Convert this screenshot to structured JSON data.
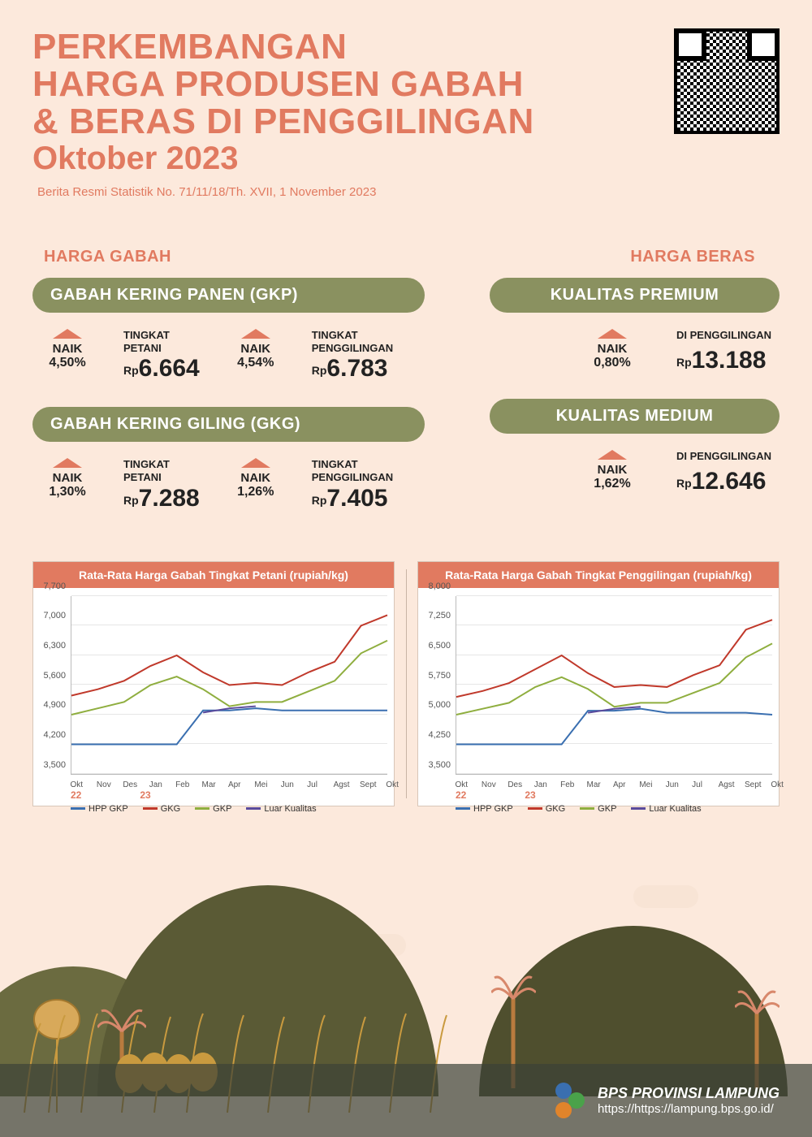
{
  "colors": {
    "background": "#fce9dc",
    "coral": "#e17a60",
    "olive": "#8a9160",
    "text": "#222222",
    "hill_dark": "#4f4f2e",
    "hill_mid": "#5a5a35",
    "hill_light": "#6b6b40",
    "wheat": "#c99a3f"
  },
  "typography": {
    "title_fontsize": 44,
    "title_weight": 800,
    "subtitle_fontsize": 15
  },
  "header": {
    "title_line_1": "PERKEMBANGAN",
    "title_line_2": "HARGA PRODUSEN GABAH",
    "title_line_3": "& BERAS DI PENGGILINGAN",
    "month_line": "Oktober 2023",
    "subtitle": "Berita Resmi Statistik No. 71/11/18/Th. XVII, 1 November 2023"
  },
  "left_section_title": "HARGA GABAH",
  "right_section_title": "HARGA BERAS",
  "gkp": {
    "pill": "GABAH KERING PANEN (GKP)",
    "a": {
      "naik": "NAIK",
      "pct": "4,50%",
      "label_l1": "TINGKAT",
      "label_l2": "PETANI",
      "rp": "Rp",
      "val": "6.664"
    },
    "b": {
      "naik": "NAIK",
      "pct": "4,54%",
      "label_l1": "TINGKAT",
      "label_l2": "PENGGILINGAN",
      "rp": "Rp",
      "val": "6.783"
    }
  },
  "gkg": {
    "pill": "GABAH KERING GILING (GKG)",
    "a": {
      "naik": "NAIK",
      "pct": "1,30%",
      "label_l1": "TINGKAT",
      "label_l2": "PETANI",
      "rp": "Rp",
      "val": "7.288"
    },
    "b": {
      "naik": "NAIK",
      "pct": "1,26%",
      "label_l1": "TINGKAT",
      "label_l2": "PENGGILINGAN",
      "rp": "Rp",
      "val": "7.405"
    }
  },
  "premium": {
    "pill": "KUALITAS PREMIUM",
    "a": {
      "naik": "NAIK",
      "pct": "0,80%",
      "label_l1": "DI PENGGILINGAN",
      "rp": "Rp",
      "val": "13.188"
    }
  },
  "medium": {
    "pill": "KUALITAS MEDIUM",
    "a": {
      "naik": "NAIK",
      "pct": "1,62%",
      "label_l1": "DI PENGGILINGAN",
      "rp": "Rp",
      "val": "12.646"
    }
  },
  "chart_left": {
    "title": "Rata-Rata Harga Gabah Tingkat Petani (rupiah/kg)",
    "type": "line",
    "ylim": [
      3500,
      7700
    ],
    "ytick_step": 700,
    "yticks": [
      3500,
      4200,
      4900,
      5600,
      6300,
      7000,
      7700
    ],
    "xlabels": [
      "Okt",
      "Nov",
      "Des",
      "Jan",
      "Feb",
      "Mar",
      "Apr",
      "Mei",
      "Jun",
      "Jul",
      "Agst",
      "Sept",
      "Okt"
    ],
    "year_tags": [
      "22",
      "23"
    ],
    "grid_color": "#e6e6e6",
    "background_color": "#ffffff",
    "label_fontsize": 11,
    "series": {
      "hpp_gkp": {
        "color": "#3a6fb0",
        "width": 2,
        "values": [
          4200,
          4200,
          4200,
          4200,
          4200,
          5000,
          5000,
          5050,
          5000,
          5000,
          5000,
          5000,
          5000
        ]
      },
      "gkg": {
        "color": "#c0392b",
        "width": 2,
        "values": [
          5350,
          5500,
          5700,
          6050,
          6300,
          5900,
          5600,
          5650,
          5600,
          5900,
          6150,
          7000,
          7250
        ]
      },
      "gkp": {
        "color": "#8fae3f",
        "width": 2,
        "values": [
          4900,
          5050,
          5200,
          5600,
          5800,
          5500,
          5100,
          5200,
          5200,
          5450,
          5700,
          6350,
          6650
        ]
      },
      "luar_kualitas": {
        "color": "#5a4a9c",
        "width": 2,
        "values": [
          null,
          null,
          null,
          null,
          null,
          4950,
          5050,
          5100,
          null,
          null,
          null,
          null,
          null
        ]
      }
    },
    "legend": [
      {
        "key": "hpp_gkp",
        "label": "HPP GKP"
      },
      {
        "key": "gkg",
        "label": "GKG"
      },
      {
        "key": "gkp",
        "label": "GKP"
      },
      {
        "key": "luar_kualitas",
        "label": "Luar Kualitas"
      }
    ]
  },
  "chart_right": {
    "title": "Rata-Rata Harga Gabah Tingkat Penggilingan (rupiah/kg)",
    "type": "line",
    "ylim": [
      3500,
      8000
    ],
    "ytick_step": 750,
    "yticks": [
      3500,
      4250,
      5000,
      5750,
      6500,
      7250,
      8000
    ],
    "xlabels": [
      "Okt",
      "Nov",
      "Des",
      "Jan",
      "Feb",
      "Mar",
      "Apr",
      "Mei",
      "Jun",
      "Jul",
      "Agst",
      "Sept",
      "Okt"
    ],
    "year_tags": [
      "22",
      "23"
    ],
    "grid_color": "#e6e6e6",
    "background_color": "#ffffff",
    "label_fontsize": 11,
    "series": {
      "hpp_gkp": {
        "color": "#3a6fb0",
        "width": 2,
        "values": [
          4250,
          4250,
          4250,
          4250,
          4250,
          5100,
          5100,
          5150,
          5050,
          5050,
          5050,
          5050,
          5000
        ]
      },
      "gkg": {
        "color": "#c0392b",
        "width": 2,
        "values": [
          5450,
          5600,
          5800,
          6150,
          6500,
          6050,
          5700,
          5750,
          5700,
          6000,
          6250,
          7150,
          7400
        ]
      },
      "gkp": {
        "color": "#8fae3f",
        "width": 2,
        "values": [
          5000,
          5150,
          5300,
          5700,
          5950,
          5650,
          5200,
          5300,
          5300,
          5550,
          5800,
          6450,
          6800
        ]
      },
      "luar_kualitas": {
        "color": "#5a4a9c",
        "width": 2,
        "values": [
          null,
          null,
          null,
          null,
          null,
          5050,
          5150,
          5200,
          null,
          null,
          null,
          null,
          null
        ]
      }
    },
    "legend": [
      {
        "key": "hpp_gkp",
        "label": "HPP GKP"
      },
      {
        "key": "gkg",
        "label": "GKG"
      },
      {
        "key": "gkp",
        "label": "GKP"
      },
      {
        "key": "luar_kualitas",
        "label": "Luar Kualitas"
      }
    ]
  },
  "footer": {
    "org": "BPS PROVINSI LAMPUNG",
    "url": "https://https://lampung.bps.go.id/"
  }
}
